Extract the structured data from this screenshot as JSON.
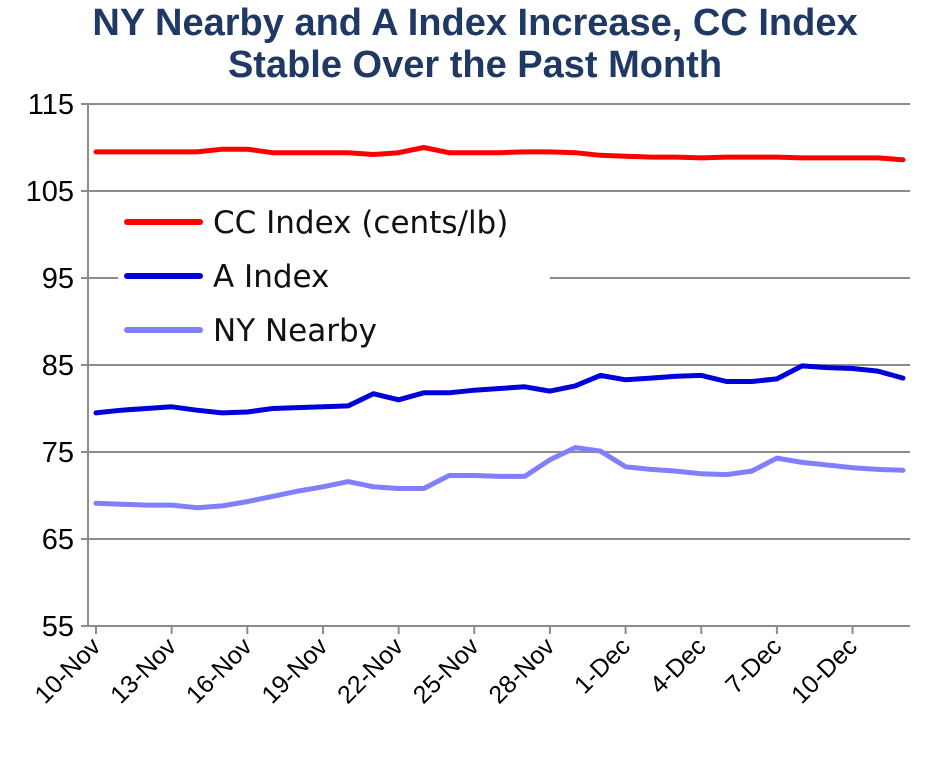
{
  "title_line1": "NY Nearby and A Index Increase, CC Index",
  "title_line2": "Stable Over the Past Month",
  "chart_data": {
    "type": "line",
    "title": "NY Nearby and A Index Increase, CC Index Stable Over the Past Month",
    "xlabel": "",
    "ylabel": "",
    "ylim": [
      55,
      115
    ],
    "yticks": [
      "55",
      "65",
      "75",
      "85",
      "95",
      "105",
      "115"
    ],
    "xtick_labels": [
      "10-Nov",
      "13-Nov",
      "16-Nov",
      "19-Nov",
      "22-Nov",
      "25-Nov",
      "28-Nov",
      "1-Dec",
      "4-Dec",
      "7-Dec",
      "10-Dec"
    ],
    "grid": "horizontal",
    "legend_placement": "upper-left inside plot",
    "x": [
      "10-Nov",
      "11-Nov",
      "12-Nov",
      "13-Nov",
      "14-Nov",
      "15-Nov",
      "16-Nov",
      "17-Nov",
      "18-Nov",
      "19-Nov",
      "20-Nov",
      "21-Nov",
      "22-Nov",
      "23-Nov",
      "24-Nov",
      "25-Nov",
      "26-Nov",
      "27-Nov",
      "28-Nov",
      "29-Nov",
      "30-Nov",
      "1-Dec",
      "2-Dec",
      "3-Dec",
      "4-Dec",
      "5-Dec",
      "6-Dec",
      "7-Dec",
      "8-Dec",
      "9-Dec",
      "10-Dec",
      "11-Dec",
      "12-Dec"
    ],
    "series": [
      {
        "name": "CC Index (cents/lb)",
        "color": "#ff0000",
        "values": [
          109.5,
          109.5,
          109.5,
          109.5,
          109.5,
          109.8,
          109.8,
          109.4,
          109.4,
          109.4,
          109.4,
          109.2,
          109.4,
          110,
          109.4,
          109.4,
          109.4,
          109.5,
          109.5,
          109.4,
          109.1,
          109,
          108.9,
          108.9,
          108.8,
          108.9,
          108.9,
          108.9,
          108.8,
          108.8,
          108.8,
          108.8,
          108.6
        ]
      },
      {
        "name": "A Index",
        "color": "#0000dd",
        "values": [
          79.5,
          79.8,
          80,
          80.2,
          79.8,
          79.5,
          79.6,
          80,
          80.1,
          80.2,
          80.3,
          81.7,
          81,
          81.8,
          81.8,
          82.1,
          82.3,
          82.5,
          82,
          82.6,
          83.8,
          83.3,
          83.5,
          83.7,
          83.8,
          83.1,
          83.1,
          83.4,
          84.9,
          84.7,
          84.6,
          84.3,
          83.5
        ]
      },
      {
        "name": "NY Nearby",
        "color": "#8080ff",
        "values": [
          69.1,
          69,
          68.9,
          68.9,
          68.6,
          68.8,
          69.3,
          69.9,
          70.5,
          71,
          71.6,
          71,
          70.8,
          70.8,
          72.3,
          72.3,
          72.2,
          72.2,
          74.1,
          75.5,
          75.1,
          73.3,
          73,
          72.8,
          72.5,
          72.4,
          72.8,
          74.3,
          73.8,
          73.5,
          73.2,
          73,
          72.9
        ]
      }
    ]
  }
}
